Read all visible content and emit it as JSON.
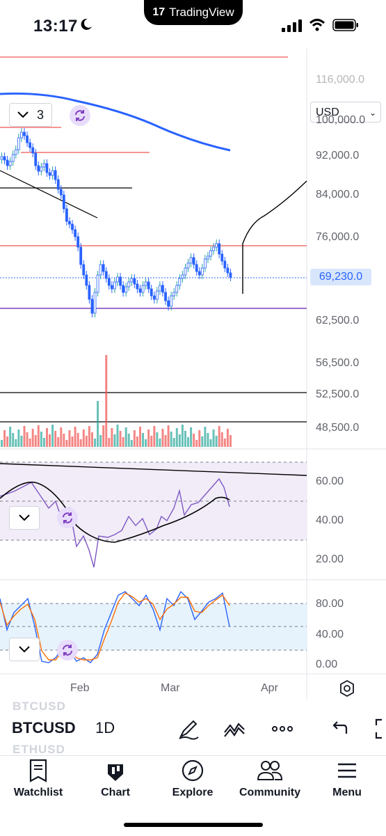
{
  "status_bar": {
    "time": "13:17"
  },
  "app_banner": {
    "name": "TradingView"
  },
  "chart": {
    "currency": "USD",
    "interval_count": "3",
    "last_price": "69,230.0",
    "price_axis": [
      "116,000.0",
      "100,000.0",
      "92,000.0",
      "84,000.0",
      "76,000.0",
      "62,500.0",
      "56,500.0",
      "52,500.0",
      "48,500.0"
    ],
    "rsi_axis": [
      "60.00",
      "40.00",
      "20.00"
    ],
    "stoch_axis": [
      "80.00",
      "40.00",
      "0.00"
    ],
    "time_axis": [
      "Feb",
      "Mar",
      "Apr"
    ],
    "colors": {
      "up": "#26a69a",
      "down": "#ef5350",
      "ma": "#2962ff",
      "rsi": "#7e57c2",
      "stoch_k": "#2962ff",
      "stoch_d": "#ff6d00"
    }
  },
  "toolbar": {
    "symbol": "BTCUSD",
    "interval": "1D",
    "ghost_above": "BTCUSD",
    "ghost_below": "ETHUSD"
  },
  "tabs": [
    {
      "label": "Watchlist"
    },
    {
      "label": "Chart"
    },
    {
      "label": "Explore"
    },
    {
      "label": "Community"
    },
    {
      "label": "Menu"
    }
  ]
}
